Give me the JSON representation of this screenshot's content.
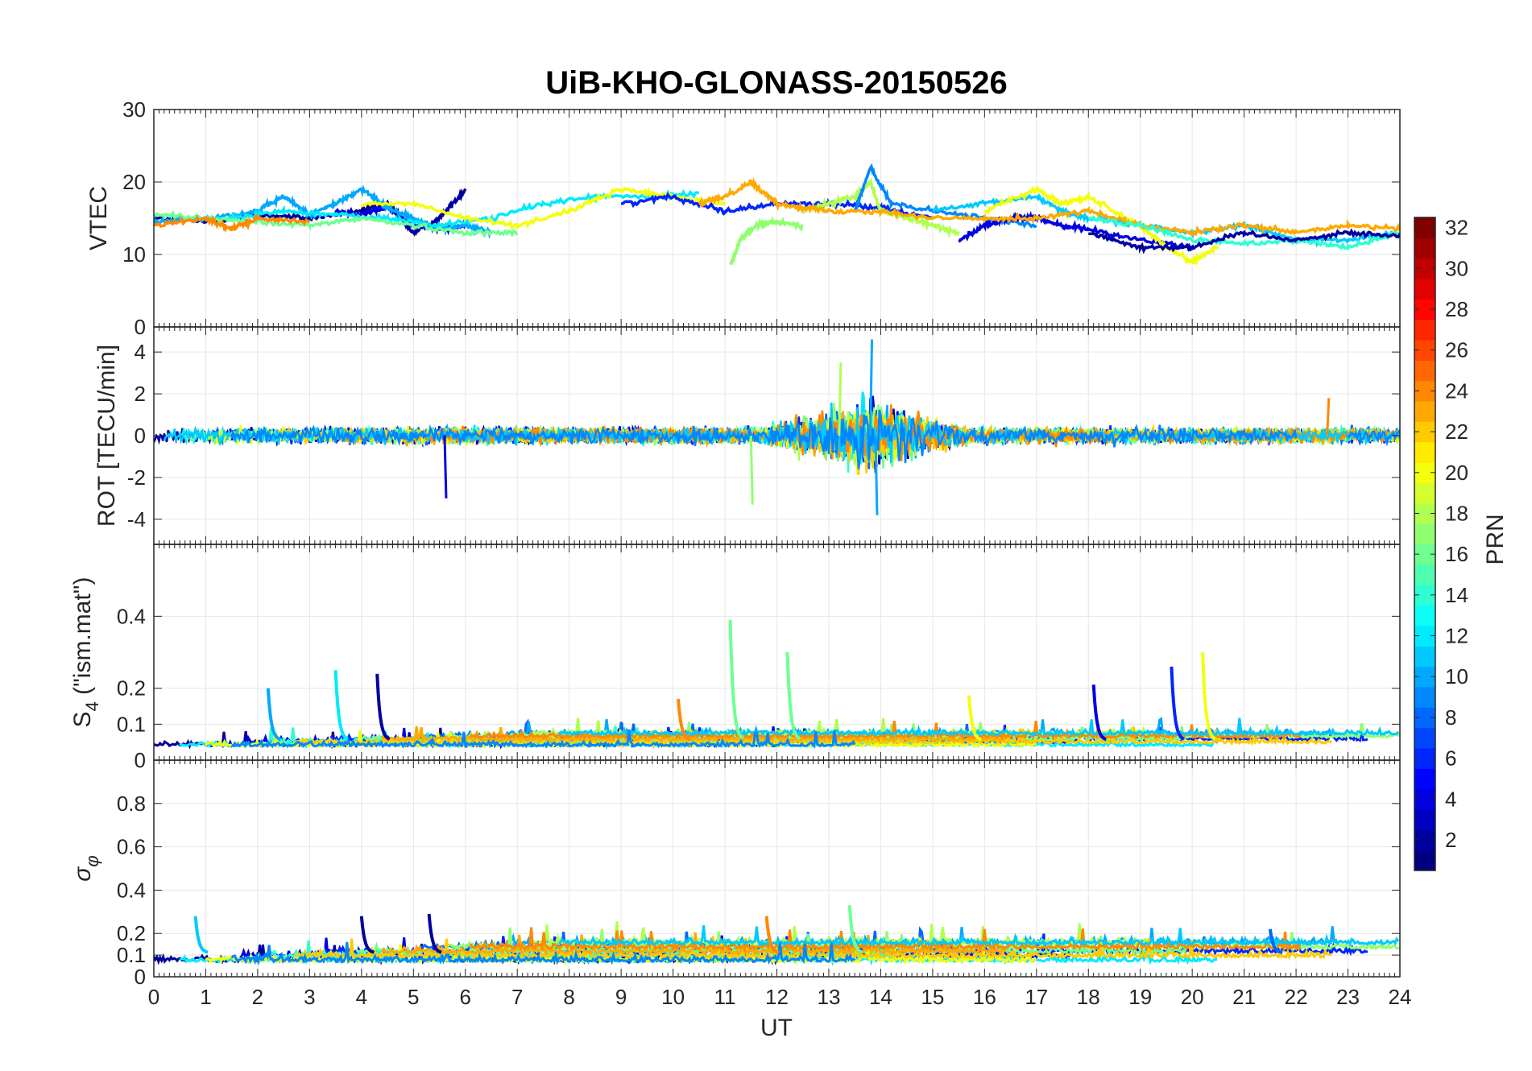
{
  "chart_data": {
    "type": "line",
    "title": "UiB-KHO-GLONASS-20150526",
    "xlabel": "UT",
    "xlim": [
      0,
      24
    ],
    "x_ticks": [
      "0",
      "1",
      "2",
      "3",
      "4",
      "5",
      "6",
      "7",
      "8",
      "9",
      "10",
      "11",
      "12",
      "13",
      "14",
      "15",
      "16",
      "17",
      "18",
      "19",
      "20",
      "21",
      "22",
      "23",
      "24"
    ],
    "grid": true,
    "colorbar": {
      "label": "PRN",
      "colormap": "jet",
      "range": [
        1,
        32
      ],
      "tick_labels": [
        "2",
        "4",
        "6",
        "8",
        "10",
        "12",
        "14",
        "16",
        "18",
        "20",
        "22",
        "24",
        "26",
        "28",
        "30",
        "32"
      ],
      "placement": "right"
    },
    "panels": [
      {
        "id": "vtec",
        "ylabel": "VTEC",
        "ylim": [
          0,
          30
        ],
        "y_ticks": [
          "0",
          "10",
          "20",
          "30"
        ],
        "series": [
          {
            "prn": 2,
            "x": [
              0,
              1,
              2,
              3,
              4,
              4.5,
              5,
              5.5,
              6
            ],
            "y": [
              15,
              14.5,
              15.5,
              15,
              16,
              17,
              13,
              15,
              19
            ]
          },
          {
            "prn": 4,
            "x": [
              3.5,
              4,
              4.5,
              5,
              5.5,
              6
            ],
            "y": [
              16,
              15.5,
              16.5,
              14,
              13.5,
              14
            ]
          },
          {
            "prn": 10,
            "x": [
              0,
              1,
              2,
              2.5,
              3,
              3.5,
              4,
              4.5,
              5,
              5.5,
              6,
              6.5
            ],
            "y": [
              14.5,
              15,
              16,
              18,
              15.5,
              17,
              19,
              16.5,
              15,
              13.5,
              14,
              13
            ]
          },
          {
            "prn": 12,
            "x": [
              0.5,
              1.5,
              2.5,
              3.5,
              4.5,
              5.5,
              6.5,
              7.5,
              8.5,
              9.5,
              10.5
            ],
            "y": [
              15,
              15,
              16,
              15.5,
              15,
              14,
              15,
              17,
              18,
              18,
              18.5
            ]
          },
          {
            "prn": 16,
            "x": [
              0,
              1,
              2,
              3,
              4,
              5,
              6,
              7
            ],
            "y": [
              15.5,
              15,
              14.5,
              14,
              15,
              14,
              13,
              13
            ]
          },
          {
            "prn": 20,
            "x": [
              4,
              5,
              6,
              7,
              8,
              9,
              10,
              11
            ],
            "y": [
              17,
              17,
              15,
              14,
              16,
              19,
              18,
              17
            ]
          },
          {
            "prn": 24,
            "x": [
              0,
              1,
              1.5,
              2,
              3
            ],
            "y": [
              14,
              15,
              13.5,
              15,
              14.5
            ]
          },
          {
            "prn": 6,
            "x": [
              9,
              10,
              11,
              12,
              13,
              14,
              15
            ],
            "y": [
              17,
              18,
              16,
              17,
              17,
              16.5,
              15
            ]
          },
          {
            "prn": 17,
            "x": [
              11.1,
              11.3,
              11.6,
              12,
              12.5
            ],
            "y": [
              8.5,
              12,
              14,
              14.5,
              14
            ]
          },
          {
            "prn": 18,
            "x": [
              12.5,
              13,
              13.5,
              13.8,
              14,
              14.5,
              15,
              15.5
            ],
            "y": [
              16,
              17,
              18,
              20,
              16,
              15,
              14,
              13
            ]
          },
          {
            "prn": 9,
            "x": [
              13.5,
              13.8,
              14.2,
              15,
              16,
              17
            ],
            "y": [
              16,
              22,
              17,
              16,
              15,
              14
            ]
          },
          {
            "prn": 4,
            "x": [
              15.5,
              16,
              16.5,
              17,
              17.5,
              18,
              19,
              20
            ],
            "y": [
              12,
              14,
              15,
              15,
              14,
              13.5,
              12,
              11
            ]
          },
          {
            "prn": 11,
            "x": [
              15,
              16,
              17,
              17.5,
              18,
              19,
              20,
              21,
              22,
              23,
              24
            ],
            "y": [
              16,
              17,
              18,
              16,
              15,
              14,
              13,
              14,
              12,
              12,
              13
            ]
          },
          {
            "prn": 20,
            "x": [
              16,
              17,
              17.5,
              18,
              19,
              19.5,
              20,
              20.5
            ],
            "y": [
              16,
              19,
              17,
              18,
              14,
              11,
              9,
              11
            ]
          },
          {
            "prn": 23,
            "x": [
              10.5,
              11,
              11.5,
              12,
              12.5,
              13,
              14,
              15,
              16,
              17,
              18,
              19,
              20,
              21,
              22,
              23,
              24
            ],
            "y": [
              17,
              18,
              20,
              17,
              16.5,
              16,
              16,
              15,
              15,
              15,
              16,
              14,
              13,
              14,
              13,
              14,
              13.5
            ]
          },
          {
            "prn": 14,
            "x": [
              18,
              19,
              20,
              21,
              22,
              23,
              24
            ],
            "y": [
              15,
              14,
              12,
              11.5,
              12,
              11,
              13
            ]
          },
          {
            "prn": 2,
            "x": [
              18,
              19,
              20,
              21,
              22,
              23,
              24
            ],
            "y": [
              13,
              11,
              11,
              13,
              12,
              13,
              12.5
            ]
          }
        ]
      },
      {
        "id": "rot",
        "ylabel": "ROT [TECU/min]",
        "ylim": [
          -5.2,
          5.2
        ],
        "y_ticks": [
          "-4",
          "-2",
          "0",
          "2",
          "4"
        ],
        "peak_values": [
          {
            "prn": 10,
            "x": 13.8,
            "y": 4.6
          },
          {
            "prn": 10,
            "x": 13.9,
            "y": -3.8
          },
          {
            "prn": 17,
            "x": 11.5,
            "y": -3.3
          },
          {
            "prn": 4,
            "x": 5.6,
            "y": -3.0
          },
          {
            "prn": 18,
            "x": 13.2,
            "y": 3.5
          },
          {
            "prn": 24,
            "x": 22.6,
            "y": 1.8
          }
        ]
      },
      {
        "id": "s4",
        "ylabel": "S4 (\"ism.mat\")",
        "ylabel_main": "S",
        "ylabel_sub": "4",
        "ylabel_tail": " (\"ism.mat\")",
        "ylim": [
          0,
          0.6
        ],
        "y_ticks": [
          "0",
          "0.1",
          "0.2",
          "0.4"
        ],
        "peaks": [
          {
            "prn": 10,
            "x": 2.2,
            "y": 0.2
          },
          {
            "prn": 12,
            "x": 3.5,
            "y": 0.25
          },
          {
            "prn": 2,
            "x": 4.3,
            "y": 0.24
          },
          {
            "prn": 16,
            "x": 11.1,
            "y": 0.39
          },
          {
            "prn": 16,
            "x": 12.2,
            "y": 0.3
          },
          {
            "prn": 4,
            "x": 18.1,
            "y": 0.21
          },
          {
            "prn": 6,
            "x": 19.6,
            "y": 0.26
          },
          {
            "prn": 20,
            "x": 20.2,
            "y": 0.3
          },
          {
            "prn": 20,
            "x": 15.7,
            "y": 0.18
          },
          {
            "prn": 24,
            "x": 10.1,
            "y": 0.17
          }
        ]
      },
      {
        "id": "sigma",
        "ylabel": "σφ",
        "ylabel_main": "σ",
        "ylabel_sub": "φ",
        "ylim": [
          0,
          1
        ],
        "y_ticks": [
          "0",
          "0.1",
          "0.2",
          "0.4",
          "0.6",
          "0.8"
        ],
        "peaks": [
          {
            "prn": 11,
            "x": 0.8,
            "y": 0.28
          },
          {
            "prn": 2,
            "x": 4.0,
            "y": 0.28
          },
          {
            "prn": 2,
            "x": 5.3,
            "y": 0.29
          },
          {
            "prn": 16,
            "x": 13.4,
            "y": 0.33
          },
          {
            "prn": 24,
            "x": 11.8,
            "y": 0.28
          },
          {
            "prn": 8,
            "x": 21.5,
            "y": 0.22
          }
        ]
      }
    ]
  }
}
